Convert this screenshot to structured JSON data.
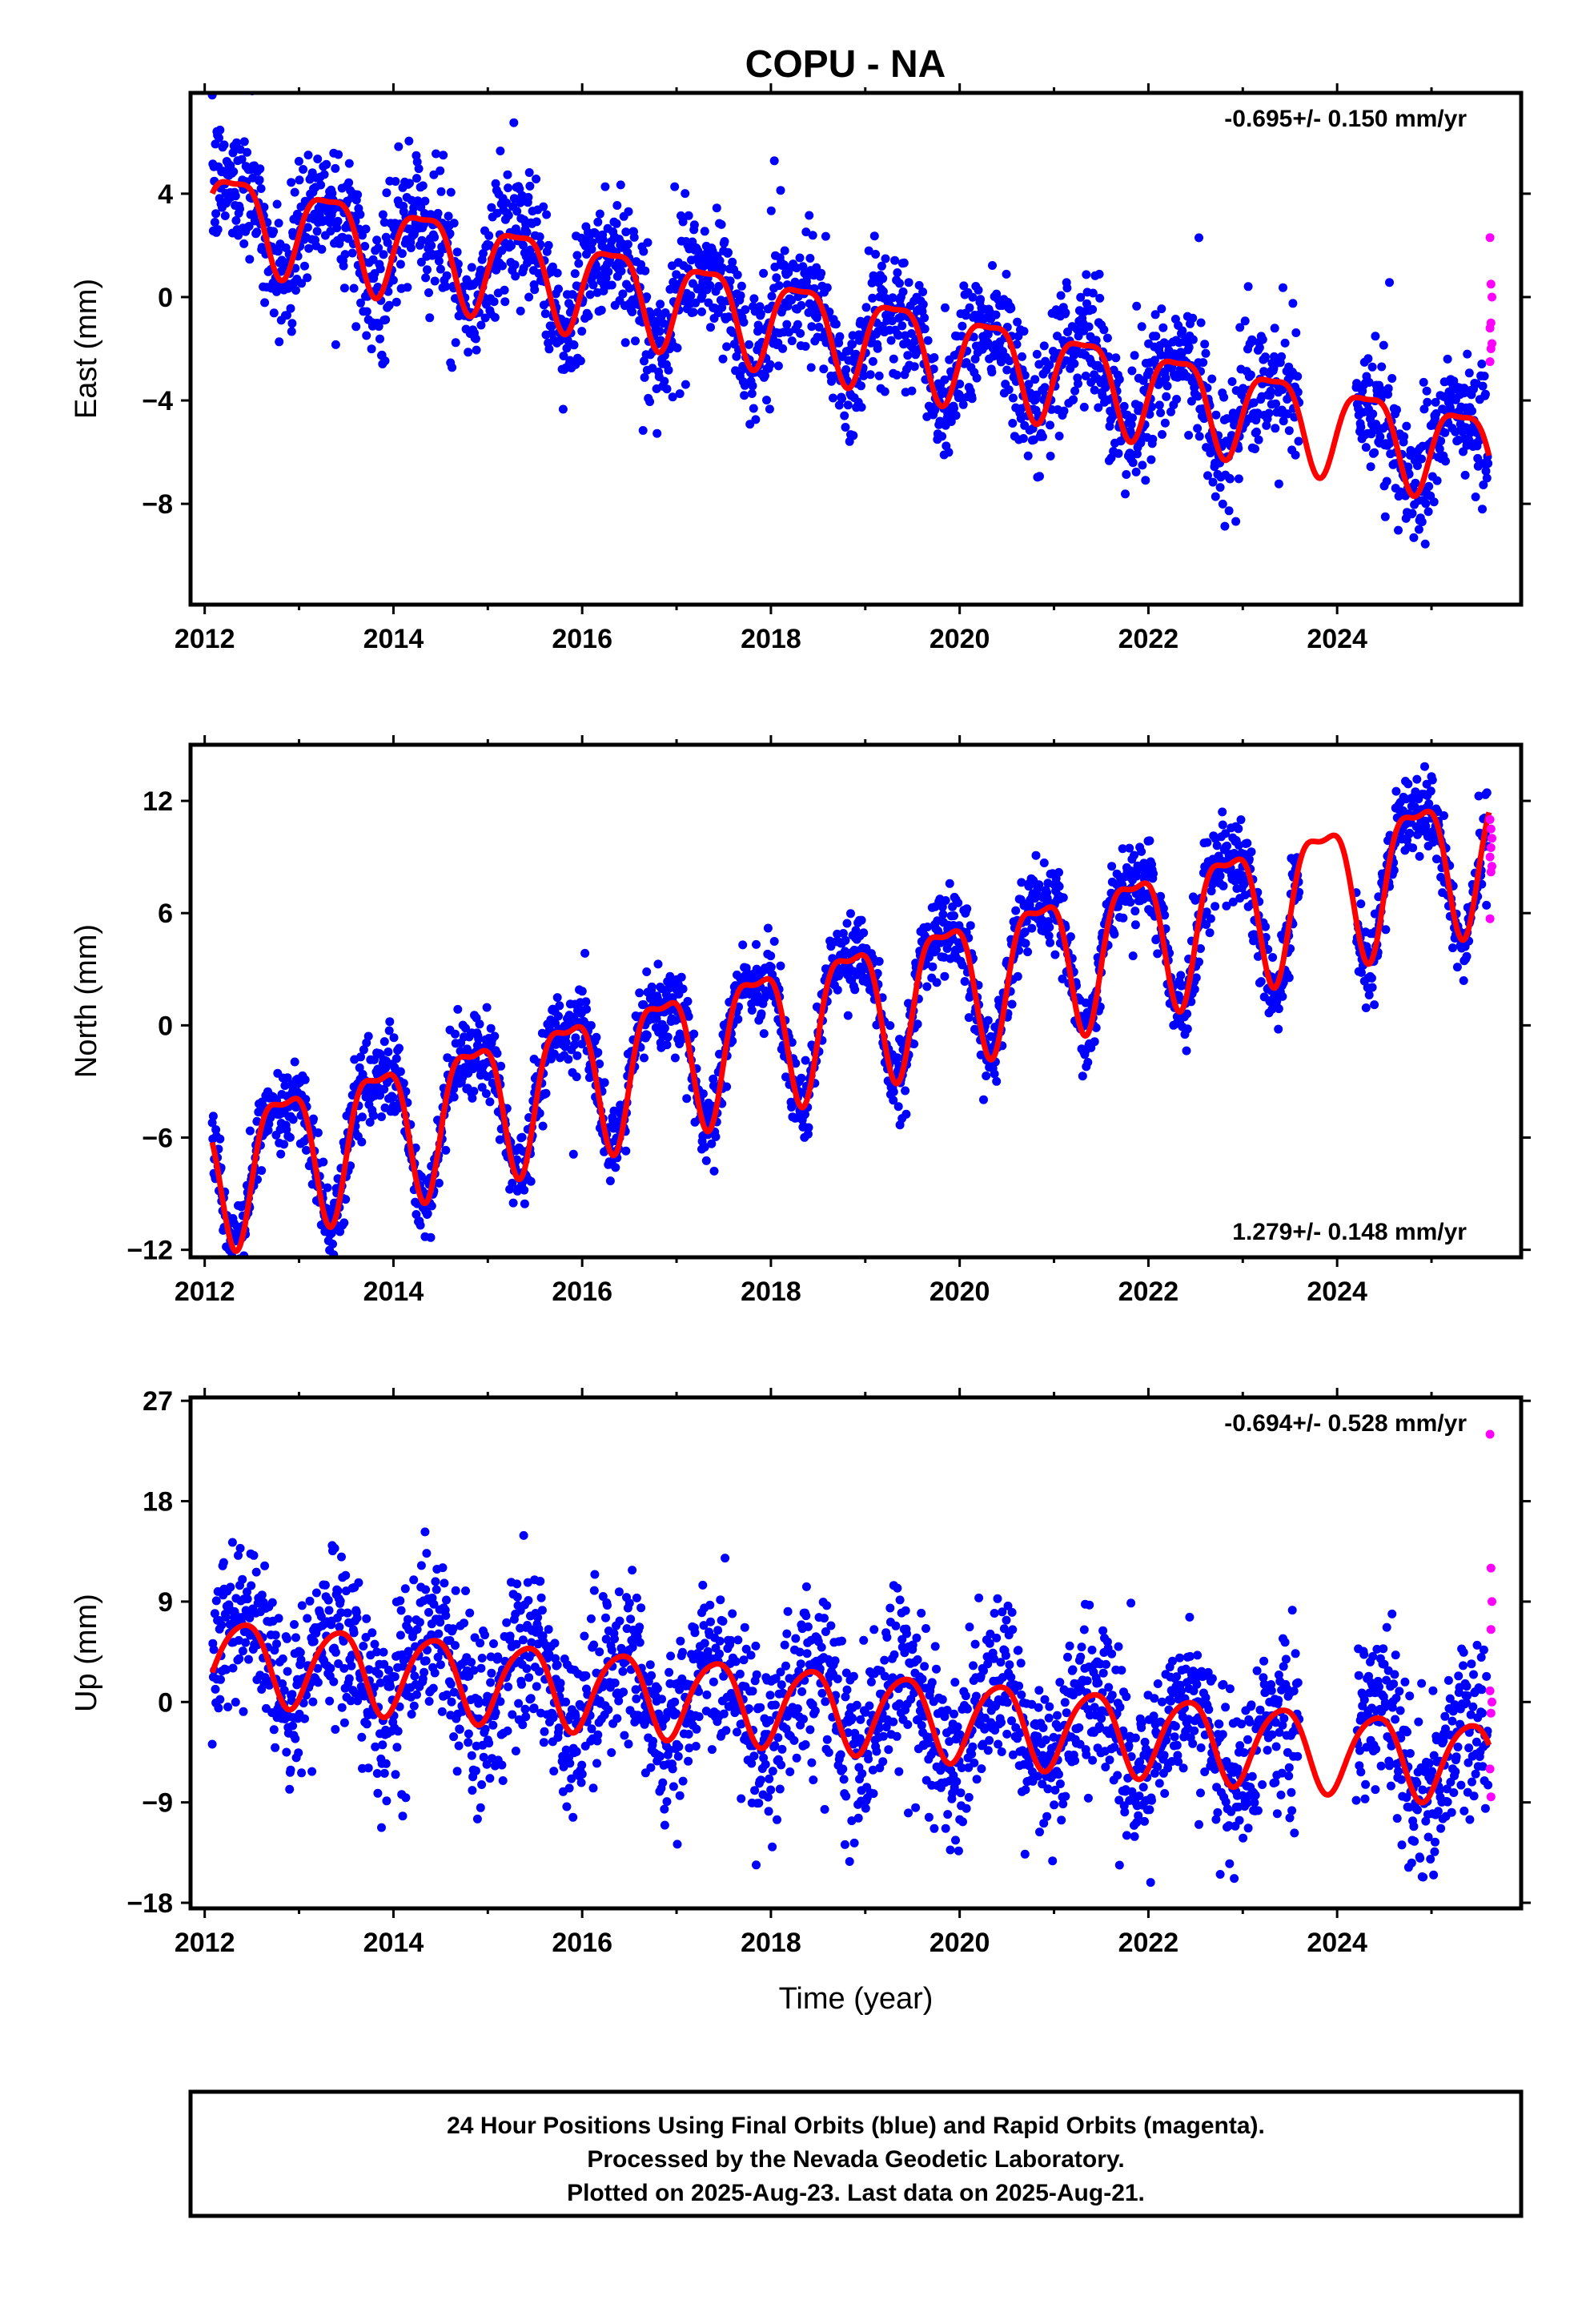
{
  "title": "COPU - NA",
  "colors": {
    "final_orbits": "#0000ff",
    "rapid_orbits": "#ff00ff",
    "model": "#ff0000",
    "frame": "#000000"
  },
  "chart_data": [
    {
      "type": "scatter",
      "ylabel": "East (mm)",
      "xlabel": "",
      "rate_label": "-0.695+/- 0.150 mm/yr",
      "rate_position": "top-right",
      "xlim": [
        2011.85,
        2025.95
      ],
      "ylim": [
        -11.9,
        7.9
      ],
      "xticks": [
        2012,
        2014,
        2016,
        2018,
        2020,
        2022,
        2024
      ],
      "xtick_labels": [
        "2012",
        "2014",
        "2016",
        "2018",
        "2020",
        "2022",
        "2024"
      ],
      "yticks": [
        4,
        0,
        -4,
        -8
      ],
      "ytick_labels": [
        "4",
        "0",
        "−4",
        "−8"
      ],
      "model": {
        "intercept_2012": 3.4,
        "rate": -0.695,
        "annual_amp": 1.7,
        "annual_phase": -0.4,
        "semi_amp": 0.5,
        "semi_phase": 0.8
      },
      "scatter": {
        "noise": 0.9,
        "seasonal_boost": 1.2
      },
      "final_series": {
        "name": "Final Orbits",
        "x_start": 2012.08,
        "x_end": 2025.6,
        "gaps": [
          [
            2023.6,
            2024.2
          ]
        ]
      },
      "rapid_series": {
        "name": "Rapid Orbits",
        "x": [
          2025.62,
          2025.63,
          2025.64,
          2025.63,
          2025.62,
          2025.64,
          2025.63,
          2025.62
        ],
        "y": [
          2.3,
          0.5,
          0.0,
          -1.0,
          -1.2,
          -1.8,
          -2.0,
          -2.5
        ]
      }
    },
    {
      "type": "scatter",
      "ylabel": "North (mm)",
      "xlabel": "",
      "rate_label": "1.279+/- 0.148 mm/yr",
      "rate_position": "bottom-right",
      "xlim": [
        2011.85,
        2025.95
      ],
      "ylim": [
        -12.4,
        15.0
      ],
      "xticks": [
        2012,
        2014,
        2016,
        2018,
        2020,
        2022,
        2024
      ],
      "xtick_labels": [
        "2012",
        "2014",
        "2016",
        "2018",
        "2020",
        "2022",
        "2024"
      ],
      "yticks": [
        12,
        6,
        0,
        -6,
        -12
      ],
      "ytick_labels": [
        "12",
        "6",
        "0",
        "−6",
        "−12"
      ],
      "model": {
        "intercept_2012": -7.7,
        "rate": 1.279,
        "annual_amp": 3.6,
        "annual_phase": 2.6,
        "semi_amp": 1.2,
        "semi_phase": 0.5
      },
      "scatter": {
        "noise": 0.9,
        "seasonal_boost": 0.6
      },
      "final_series": {
        "name": "Final Orbits",
        "x_start": 2012.08,
        "x_end": 2025.6,
        "gaps": [
          [
            2023.6,
            2024.2
          ]
        ]
      },
      "rapid_series": {
        "name": "Rapid Orbits",
        "x": [
          2025.62,
          2025.63,
          2025.64,
          2025.63,
          2025.62,
          2025.64,
          2025.63,
          2025.62
        ],
        "y": [
          11.0,
          10.5,
          10.0,
          9.5,
          9.0,
          8.5,
          8.2,
          5.7
        ]
      }
    },
    {
      "type": "scatter",
      "ylabel": "Up (mm)",
      "xlabel": "Time (year)",
      "rate_label": "-0.694+/- 0.528 mm/yr",
      "rate_position": "top-right",
      "xlim": [
        2011.85,
        2025.95
      ],
      "ylim": [
        -18.5,
        27.3
      ],
      "xticks": [
        2012,
        2014,
        2016,
        2018,
        2020,
        2022,
        2024
      ],
      "xtick_labels": [
        "2012",
        "2014",
        "2016",
        "2018",
        "2020",
        "2022",
        "2024"
      ],
      "yticks": [
        27,
        18,
        9,
        0,
        -9,
        -18
      ],
      "ytick_labels": [
        "27",
        "18",
        "9",
        "0",
        "−9",
        "−18"
      ],
      "model": {
        "intercept_2012": 4.0,
        "rate": -0.694,
        "annual_amp": 3.6,
        "annual_phase": -1.0,
        "semi_amp": 0.5,
        "semi_phase": 0.0
      },
      "scatter": {
        "noise": 3.4,
        "seasonal_boost": 0.3
      },
      "final_series": {
        "name": "Final Orbits",
        "x_start": 2012.08,
        "x_end": 2025.6,
        "gaps": [
          [
            2023.6,
            2024.2
          ]
        ]
      },
      "rapid_series": {
        "name": "Rapid Orbits",
        "x": [
          2025.62,
          2025.63,
          2025.64,
          2025.63,
          2025.62,
          2025.64,
          2025.63,
          2025.62,
          2025.63
        ],
        "y": [
          24.0,
          12.0,
          9.0,
          6.5,
          1.0,
          0.0,
          -1.0,
          -6.0,
          -8.5
        ]
      }
    }
  ],
  "footer": {
    "line1": "24 Hour Positions Using Final Orbits (blue) and Rapid Orbits (magenta).",
    "line2": "Processed by the Nevada Geodetic Laboratory.",
    "line3": "Plotted on 2025-Aug-23. Last data on 2025-Aug-21."
  }
}
